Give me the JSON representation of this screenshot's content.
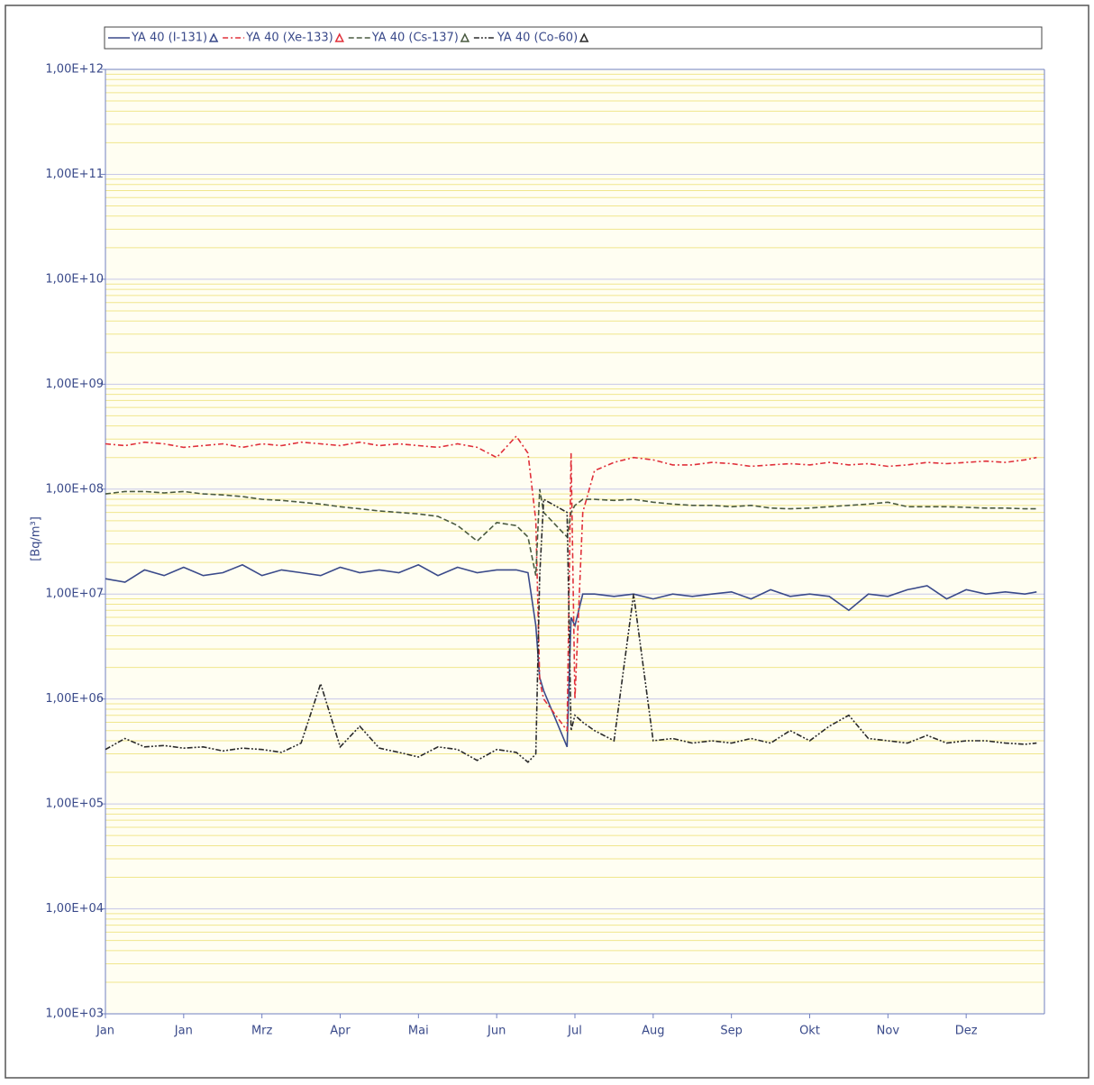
{
  "chart_data": {
    "type": "line",
    "y_label": "[Bq/m³]",
    "log_y": true,
    "grid": true,
    "minor_grid": true,
    "legend": "top",
    "x": [
      0,
      0.25,
      0.5,
      0.75,
      1,
      1.25,
      1.5,
      1.75,
      2,
      2.25,
      2.5,
      2.75,
      3,
      3.25,
      3.5,
      3.75,
      4,
      4.25,
      4.5,
      4.75,
      5,
      5.25,
      5.4,
      5.5,
      5.55,
      5.6,
      5.9,
      5.95,
      6.0,
      6.1,
      6.25,
      6.5,
      6.75,
      7,
      7.25,
      7.5,
      7.75,
      8,
      8.25,
      8.5,
      8.75,
      9,
      9.25,
      9.5,
      9.75,
      10,
      10.25,
      10.5,
      10.75,
      11,
      11.25,
      11.5,
      11.75,
      11.9
    ],
    "xlim": [
      0,
      12
    ],
    "xticks": [
      {
        "value": 0,
        "label": "Jan"
      },
      {
        "value": 1,
        "label": "Jan"
      },
      {
        "value": 2,
        "label": "Mrz"
      },
      {
        "value": 3,
        "label": "Apr"
      },
      {
        "value": 4,
        "label": "Mai"
      },
      {
        "value": 5,
        "label": "Jun"
      },
      {
        "value": 6,
        "label": "Jul"
      },
      {
        "value": 7,
        "label": "Aug"
      },
      {
        "value": 8,
        "label": "Sep"
      },
      {
        "value": 9,
        "label": "Okt"
      },
      {
        "value": 10,
        "label": "Nov"
      },
      {
        "value": 11,
        "label": "Dez"
      }
    ],
    "ylim": [
      1000,
      1000000000000
    ],
    "yticks": [
      {
        "value": 1000,
        "label": "1,00E+03"
      },
      {
        "value": 10000,
        "label": "1,00E+04"
      },
      {
        "value": 100000,
        "label": "1,00E+05"
      },
      {
        "value": 1000000,
        "label": "1,00E+06"
      },
      {
        "value": 10000000,
        "label": "1,00E+07"
      },
      {
        "value": 100000000,
        "label": "1,00E+08"
      },
      {
        "value": 1000000000,
        "label": "1,00E+09"
      },
      {
        "value": 10000000000,
        "label": "1,00E+10"
      },
      {
        "value": 100000000000,
        "label": "1,00E+11"
      },
      {
        "value": 1000000000000,
        "label": "1,00E+12"
      }
    ],
    "series": [
      {
        "name": "YA 40 (I-131)",
        "color": "#3a4a8a",
        "linestyle": "solid",
        "values": [
          14000000,
          13000000,
          17000000,
          15000000,
          18000000,
          15000000,
          16000000,
          19000000,
          15000000,
          17000000,
          16000000,
          15000000,
          18000000,
          16000000,
          17000000,
          16000000,
          19000000,
          15000000,
          18000000,
          16000000,
          17000000,
          17000000,
          16000000,
          5000000,
          1600000,
          1200000,
          350000,
          6000000,
          5000000,
          10000000,
          10000000,
          9500000,
          10000000,
          9000000,
          10000000,
          9500000,
          10000000,
          10500000,
          9000000,
          11000000,
          9500000,
          10000000,
          9500000,
          7000000,
          10000000,
          9500000,
          11000000,
          12000000,
          9000000,
          11000000,
          10000000,
          10500000,
          10000000,
          10500000
        ]
      },
      {
        "name": "YA 40 (Xe-133)",
        "color": "#e0303a",
        "linestyle": "dashdot",
        "values": [
          270000000,
          260000000,
          280000000,
          270000000,
          250000000,
          260000000,
          270000000,
          250000000,
          270000000,
          260000000,
          280000000,
          270000000,
          260000000,
          280000000,
          260000000,
          270000000,
          260000000,
          250000000,
          270000000,
          250000000,
          200000000,
          320000000,
          220000000,
          50000000,
          1500000,
          1000000,
          500000,
          220000000,
          1000000,
          60000000,
          150000000,
          180000000,
          200000000,
          190000000,
          170000000,
          170000000,
          180000000,
          175000000,
          165000000,
          170000000,
          175000000,
          170000000,
          180000000,
          170000000,
          175000000,
          165000000,
          170000000,
          180000000,
          175000000,
          180000000,
          185000000,
          180000000,
          190000000,
          200000000
        ]
      },
      {
        "name": "YA 40 (Cs-137)",
        "color": "#4a5a40",
        "linestyle": "dashed",
        "values": [
          90000000,
          95000000,
          95000000,
          92000000,
          95000000,
          90000000,
          88000000,
          85000000,
          80000000,
          78000000,
          75000000,
          72000000,
          68000000,
          65000000,
          62000000,
          60000000,
          58000000,
          55000000,
          45000000,
          32000000,
          48000000,
          45000000,
          35000000,
          15000000,
          100000000,
          60000000,
          35000000,
          60000000,
          70000000,
          80000000,
          80000000,
          78000000,
          80000000,
          75000000,
          72000000,
          70000000,
          70000000,
          68000000,
          70000000,
          66000000,
          65000000,
          66000000,
          68000000,
          70000000,
          72000000,
          75000000,
          68000000,
          68000000,
          68000000,
          67000000,
          66000000,
          66000000,
          65000000,
          65000000
        ]
      },
      {
        "name": "YA 40 (Co-60)",
        "color": "#2a2a2a",
        "linestyle": "dashdotdot",
        "values": [
          330000,
          420000,
          350000,
          360000,
          340000,
          350000,
          320000,
          340000,
          330000,
          310000,
          380000,
          1400000,
          350000,
          550000,
          340000,
          310000,
          280000,
          350000,
          330000,
          260000,
          330000,
          310000,
          250000,
          300000,
          15000000,
          80000000,
          60000000,
          500000,
          700000,
          600000,
          500000,
          400000,
          10000000,
          400000,
          420000,
          380000,
          400000,
          380000,
          420000,
          380000,
          500000,
          400000,
          550000,
          700000,
          420000,
          400000,
          380000,
          450000,
          380000,
          400000,
          400000,
          380000,
          370000,
          380000
        ]
      }
    ]
  }
}
